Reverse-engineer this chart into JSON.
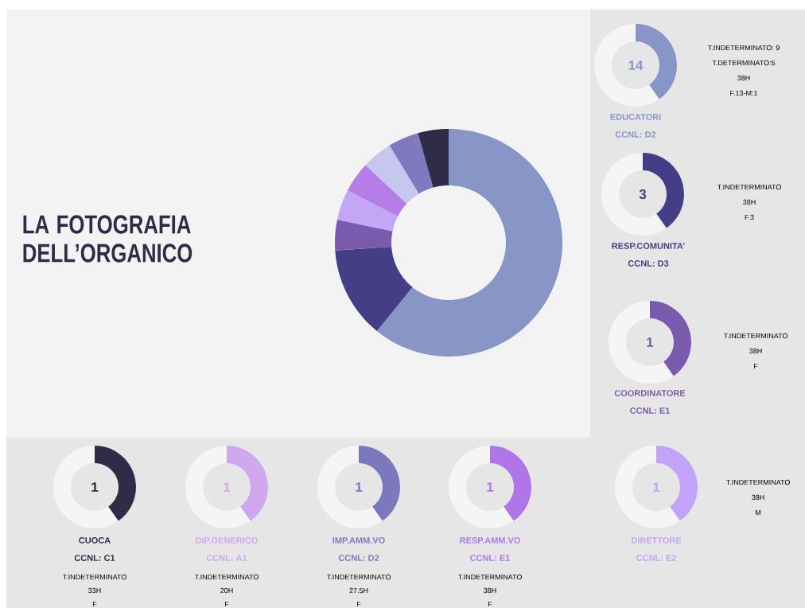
{
  "chart_data": [
    {
      "type": "donut",
      "title": "LA FOTOGRAFIA DELL’ORGANICO",
      "categories": [
        null,
        null,
        null,
        null,
        null,
        null,
        null,
        null
      ],
      "values": [
        60.87,
        13.04,
        4.35,
        4.35,
        4.35,
        4.35,
        4.35,
        4.35
      ],
      "colors": [
        "#8795c7",
        "#433e85",
        "#7a5aad",
        "#c4a6f7",
        "#b57de6",
        "#c5c7ef",
        "#7f79c0",
        "#2e2c47"
      ]
    },
    {
      "type": "other",
      "title": "EDUCATORI",
      "subtitle": "CCNL: D2",
      "values": [
        14
      ],
      "data_labels": true,
      "color": "#8795c7",
      "annotations": [
        "T.INDETERMINATO: 9",
        "T.DETERMINATO:5",
        "38H",
        "F.13-M:1"
      ]
    },
    {
      "type": "other",
      "title": "RESP.COMUNITA’",
      "subtitle": "CCNL: D3",
      "values": [
        3
      ],
      "data_labels": true,
      "color": "#433e85",
      "annotations": [
        "T.INDETERMINATO",
        "38H",
        "F.3"
      ]
    },
    {
      "type": "other",
      "title": "COORDINATORE",
      "subtitle": "CCNL: E1",
      "values": [
        1
      ],
      "data_labels": true,
      "color": "#7a5aad",
      "annotations": [
        "T.INDETERMINATO",
        "38H",
        "F"
      ]
    },
    {
      "type": "other",
      "title": "CUOCA",
      "subtitle": "CCNL: C1",
      "values": [
        1
      ],
      "data_labels": true,
      "color": "#2e2c47",
      "annotations": [
        "T.INDETERMINATO",
        "33H",
        "F"
      ]
    },
    {
      "type": "other",
      "title": "DIP.GENERICO",
      "subtitle": "CCNL: A1",
      "values": [
        1
      ],
      "data_labels": true,
      "color": "#cfa8f0",
      "annotations": [
        "T.INDETERMINATO",
        "20H",
        "F"
      ]
    },
    {
      "type": "other",
      "title": "IMP.AMM.VO",
      "subtitle": "CCNL: D2",
      "values": [
        1
      ],
      "data_labels": true,
      "color": "#7c78bd",
      "annotations": [
        "T.INDETERMINATO",
        "27.5H",
        "F"
      ]
    },
    {
      "type": "other",
      "title": "RESP.AMM.VO",
      "subtitle": "CCNL: E1",
      "values": [
        1
      ],
      "data_labels": true,
      "color": "#b076e8",
      "annotations": [
        "T.INDETERMINATO",
        "38H",
        "F"
      ]
    },
    {
      "type": "other",
      "title": "DIRETTORE",
      "subtitle": "CCNL: E2",
      "values": [
        1
      ],
      "data_labels": true,
      "color": "#c3a3f7",
      "annotations": [
        "T.INDETERMINATO",
        "38H",
        "M"
      ]
    }
  ]
}
